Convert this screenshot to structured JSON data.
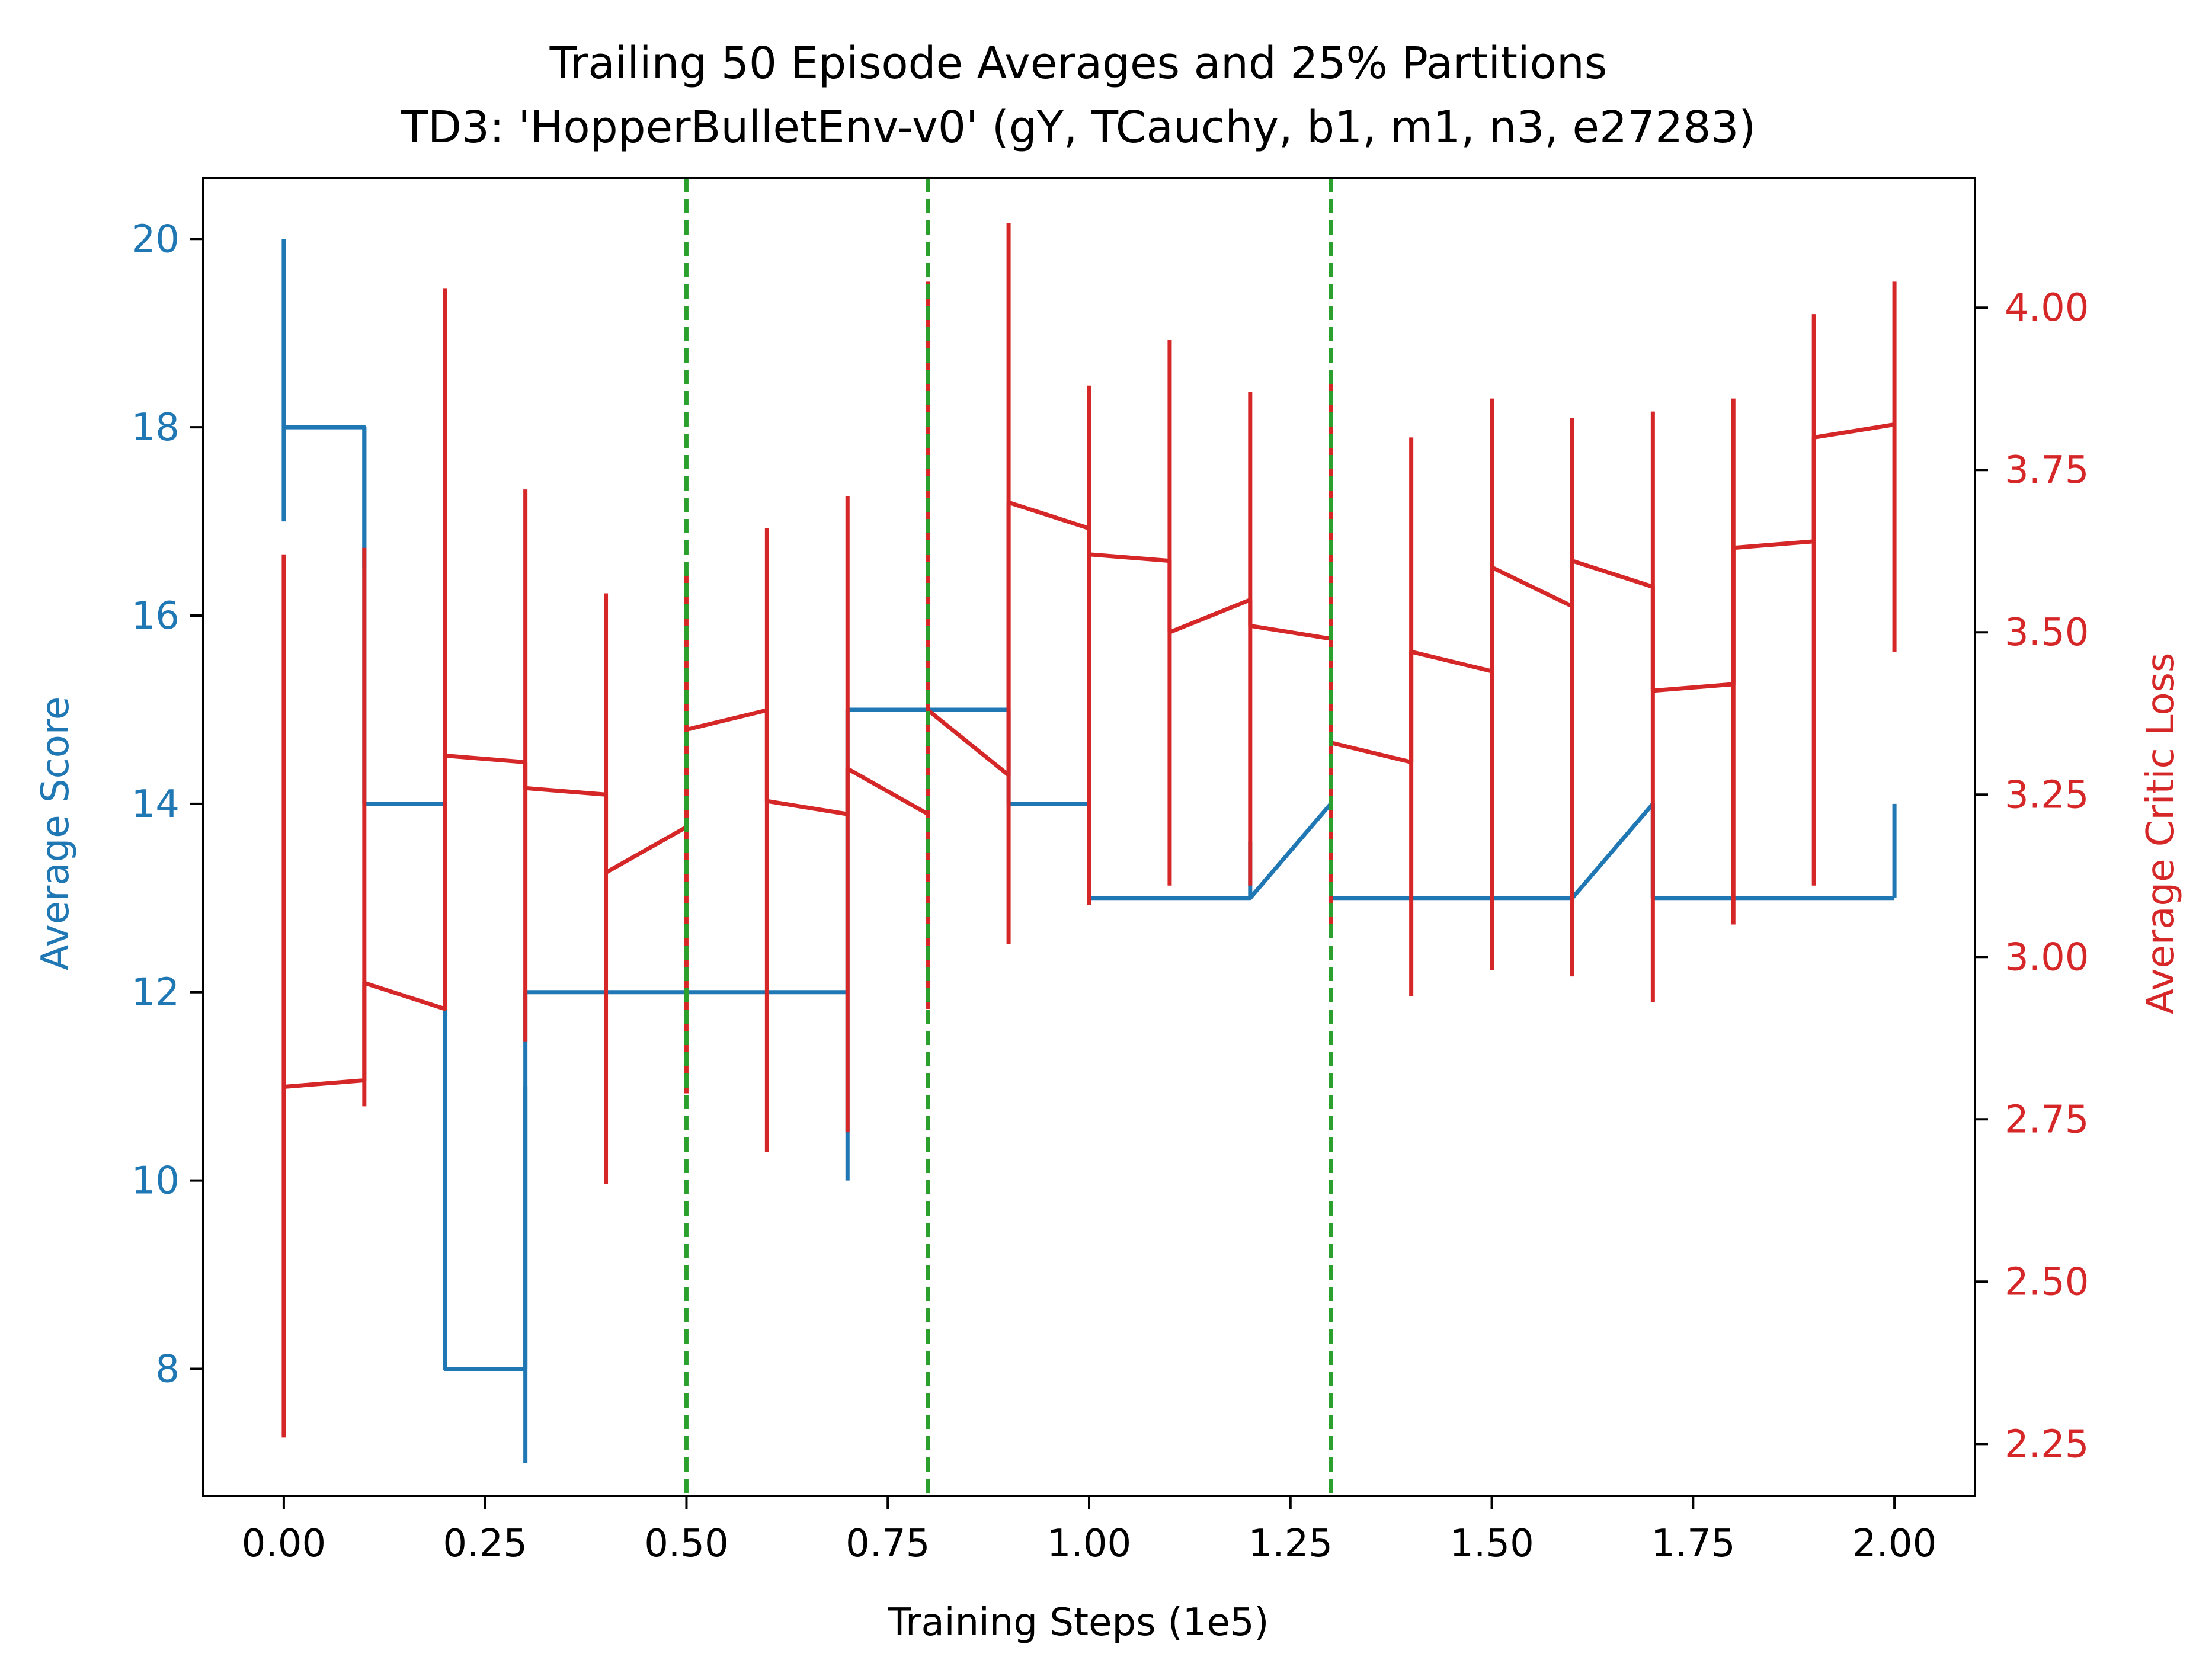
{
  "chart_data": {
    "type": "line",
    "title": "Trailing 50 Episode Averages and 25% Partitions",
    "subtitle": "TD3: 'HopperBulletEnv-v0' (gY, TCauchy, b1, m1, n3, e27283)",
    "xlabel": "Training Steps (1e5)",
    "ylabel_left": "Average Score",
    "ylabel_right": "Average Critic Loss",
    "xlim": [
      -0.1,
      2.1
    ],
    "ylim_left": [
      6.65,
      20.65
    ],
    "ylim_right": [
      2.17,
      4.2
    ],
    "x_ticks": [
      0.0,
      0.25,
      0.5,
      0.75,
      1.0,
      1.25,
      1.5,
      1.75,
      2.0
    ],
    "x_tick_labels": [
      "0.00",
      "0.25",
      "0.50",
      "0.75",
      "1.00",
      "1.25",
      "1.50",
      "1.75",
      "2.00"
    ],
    "y_left_ticks": [
      8,
      10,
      12,
      14,
      16,
      18,
      20
    ],
    "y_left_tick_labels": [
      "8",
      "10",
      "12",
      "14",
      "16",
      "18",
      "20"
    ],
    "y_right_ticks": [
      2.25,
      2.5,
      2.75,
      3.0,
      3.25,
      3.5,
      3.75,
      4.0
    ],
    "y_right_tick_labels": [
      "2.25",
      "2.50",
      "2.75",
      "3.00",
      "3.25",
      "3.50",
      "3.75",
      "4.00"
    ],
    "partition_lines": [
      0.5,
      0.8,
      1.3
    ],
    "grid": false,
    "colors": {
      "score": "#1f77b4",
      "critic": "#d62728",
      "partition": "#2ca02c",
      "axes": "#000000"
    },
    "series": [
      {
        "axis": "left",
        "color": "#1f77b4",
        "points": [
          {
            "x": 0.0,
            "mean": 18,
            "low": 17,
            "high": 20
          },
          {
            "x": 0.1,
            "mean": 18,
            "low": 16.5,
            "high": 18
          },
          {
            "x": 0.1,
            "mean": 14,
            "low": 14,
            "high": 14
          },
          {
            "x": 0.2,
            "mean": 14,
            "low": 11.5,
            "high": 14
          },
          {
            "x": 0.2,
            "mean": 8,
            "low": 8,
            "high": 8
          },
          {
            "x": 0.3,
            "mean": 8,
            "low": 7,
            "high": 11
          },
          {
            "x": 0.3,
            "mean": 12,
            "low": 12,
            "high": 12
          },
          {
            "x": 0.7,
            "mean": 12,
            "low": 10,
            "high": 12
          },
          {
            "x": 0.7,
            "mean": 15,
            "low": 15,
            "high": 15
          },
          {
            "x": 0.9,
            "mean": 15,
            "low": 15,
            "high": 15
          },
          {
            "x": 0.9,
            "mean": 14,
            "low": 14,
            "high": 14
          },
          {
            "x": 1.0,
            "mean": 14,
            "low": 14,
            "high": 14
          },
          {
            "x": 1.0,
            "mean": 13,
            "low": 13,
            "high": 13
          },
          {
            "x": 1.2,
            "mean": 13,
            "low": 13,
            "high": 13.6
          },
          {
            "x": 1.3,
            "mean": 14,
            "low": 13,
            "high": 14
          },
          {
            "x": 1.3,
            "mean": 13,
            "low": 13,
            "high": 13
          },
          {
            "x": 1.6,
            "mean": 13,
            "low": 13,
            "high": 13
          },
          {
            "x": 1.7,
            "mean": 14,
            "low": 13,
            "high": 14
          },
          {
            "x": 1.7,
            "mean": 13,
            "low": 13,
            "high": 13
          },
          {
            "x": 2.0,
            "mean": 13,
            "low": 13,
            "high": 14
          }
        ]
      },
      {
        "axis": "right",
        "color": "#d62728",
        "points": [
          {
            "x": 0.0,
            "mean": 2.8,
            "low": 2.26,
            "high": 3.62
          },
          {
            "x": 0.1,
            "mean": 2.81,
            "low": 2.77,
            "high": 3.63
          },
          {
            "x": 0.1,
            "mean": 2.96,
            "low": 2.96,
            "high": 2.96
          },
          {
            "x": 0.2,
            "mean": 2.92,
            "low": 2.92,
            "high": 4.03
          },
          {
            "x": 0.2,
            "mean": 3.31,
            "low": 3.31,
            "high": 3.31
          },
          {
            "x": 0.3,
            "mean": 3.3,
            "low": 2.87,
            "high": 3.72
          },
          {
            "x": 0.3,
            "mean": 3.26,
            "low": 3.26,
            "high": 3.26
          },
          {
            "x": 0.4,
            "mean": 3.25,
            "low": 2.65,
            "high": 3.56
          },
          {
            "x": 0.4,
            "mean": 3.13,
            "low": 3.13,
            "high": 3.13
          },
          {
            "x": 0.5,
            "mean": 3.2,
            "low": 2.79,
            "high": 3.59
          },
          {
            "x": 0.5,
            "mean": 3.35,
            "low": 3.35,
            "high": 3.35
          },
          {
            "x": 0.6,
            "mean": 3.38,
            "low": 2.7,
            "high": 3.66
          },
          {
            "x": 0.6,
            "mean": 3.24,
            "low": 3.24,
            "high": 3.24
          },
          {
            "x": 0.7,
            "mean": 3.22,
            "low": 2.73,
            "high": 3.71
          },
          {
            "x": 0.7,
            "mean": 3.29,
            "low": 3.29,
            "high": 3.29
          },
          {
            "x": 0.8,
            "mean": 3.22,
            "low": 2.92,
            "high": 4.04
          },
          {
            "x": 0.8,
            "mean": 3.38,
            "low": 3.38,
            "high": 3.38
          },
          {
            "x": 0.9,
            "mean": 3.28,
            "low": 3.02,
            "high": 4.13
          },
          {
            "x": 0.9,
            "mean": 3.7,
            "low": 3.7,
            "high": 3.7
          },
          {
            "x": 1.0,
            "mean": 3.66,
            "low": 3.08,
            "high": 3.88
          },
          {
            "x": 1.0,
            "mean": 3.62,
            "low": 3.62,
            "high": 3.62
          },
          {
            "x": 1.1,
            "mean": 3.61,
            "low": 3.11,
            "high": 3.95
          },
          {
            "x": 1.1,
            "mean": 3.5,
            "low": 3.5,
            "high": 3.5
          },
          {
            "x": 1.2,
            "mean": 3.55,
            "low": 3.11,
            "high": 3.87
          },
          {
            "x": 1.2,
            "mean": 3.51,
            "low": 3.51,
            "high": 3.51
          },
          {
            "x": 1.3,
            "mean": 3.49,
            "low": 3.04,
            "high": 3.89
          },
          {
            "x": 1.3,
            "mean": 3.33,
            "low": 3.33,
            "high": 3.33
          },
          {
            "x": 1.4,
            "mean": 3.3,
            "low": 2.94,
            "high": 3.8
          },
          {
            "x": 1.4,
            "mean": 3.47,
            "low": 3.47,
            "high": 3.47
          },
          {
            "x": 1.5,
            "mean": 3.44,
            "low": 2.98,
            "high": 3.86
          },
          {
            "x": 1.5,
            "mean": 3.6,
            "low": 3.6,
            "high": 3.6
          },
          {
            "x": 1.6,
            "mean": 3.54,
            "low": 2.97,
            "high": 3.83
          },
          {
            "x": 1.6,
            "mean": 3.61,
            "low": 3.61,
            "high": 3.61
          },
          {
            "x": 1.7,
            "mean": 3.57,
            "low": 2.93,
            "high": 3.84
          },
          {
            "x": 1.7,
            "mean": 3.41,
            "low": 3.41,
            "high": 3.41
          },
          {
            "x": 1.8,
            "mean": 3.42,
            "low": 3.05,
            "high": 3.86
          },
          {
            "x": 1.8,
            "mean": 3.63,
            "low": 3.63,
            "high": 3.63
          },
          {
            "x": 1.9,
            "mean": 3.64,
            "low": 3.11,
            "high": 3.99
          },
          {
            "x": 1.9,
            "mean": 3.8,
            "low": 3.8,
            "high": 3.8
          },
          {
            "x": 2.0,
            "mean": 3.82,
            "low": 3.47,
            "high": 4.04
          }
        ]
      }
    ]
  }
}
